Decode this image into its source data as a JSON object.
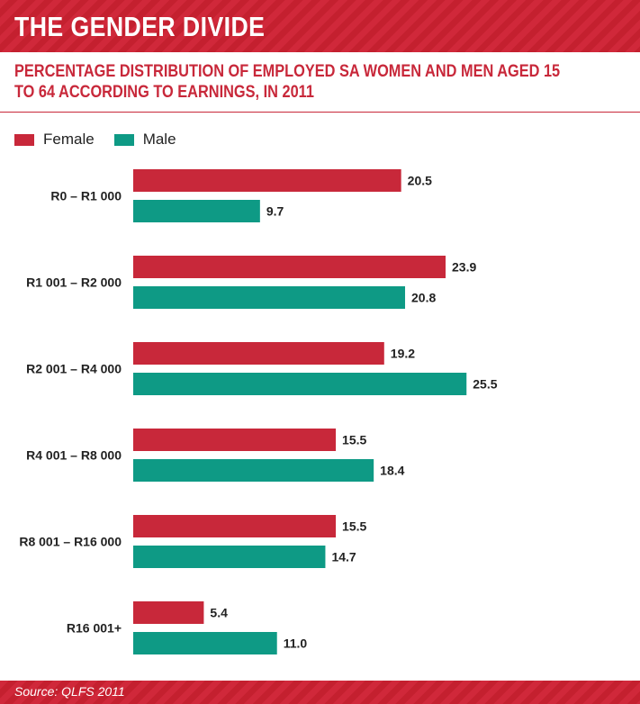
{
  "header": {
    "title": "THE GENDER DIVIDE",
    "subtitle": "PERCENTAGE DISTRIBUTION OF EMPLOYED SA WOMEN AND MEN AGED 15 TO 64 ACCORDING TO EARNINGS, IN 2011"
  },
  "legend": {
    "female": "Female",
    "male": "Male"
  },
  "footer": {
    "source": "Source: QLFS 2011"
  },
  "colors": {
    "female": "#c8283a",
    "male": "#0e9a85",
    "title_bg": "#d0283a"
  },
  "chart_data": {
    "type": "bar",
    "orientation": "horizontal",
    "title": "PERCENTAGE DISTRIBUTION OF EMPLOYED SA WOMEN AND MEN AGED 15 TO 64 ACCORDING TO EARNINGS, IN 2011",
    "categories": [
      "R0 – R1 000",
      "R1 001 – R2 000",
      "R2 001 – R4 000",
      "R4 001 – R8 000",
      "R8 001 – R16 000",
      "R16 001+"
    ],
    "series": [
      {
        "name": "Female",
        "values": [
          20.5,
          23.9,
          19.2,
          15.5,
          15.5,
          5.4
        ]
      },
      {
        "name": "Male",
        "values": [
          9.7,
          20.8,
          25.5,
          18.4,
          14.7,
          11.0
        ]
      }
    ],
    "value_labels": [
      [
        "20.5",
        "23.9",
        "19.2",
        "15.5",
        "15.5",
        "5.4"
      ],
      [
        "9.7",
        "20.8",
        "25.5",
        "18.4",
        "14.7",
        "11.0"
      ]
    ],
    "xlabel": "",
    "ylabel": "",
    "grid": false,
    "legend_position": "top-left"
  }
}
